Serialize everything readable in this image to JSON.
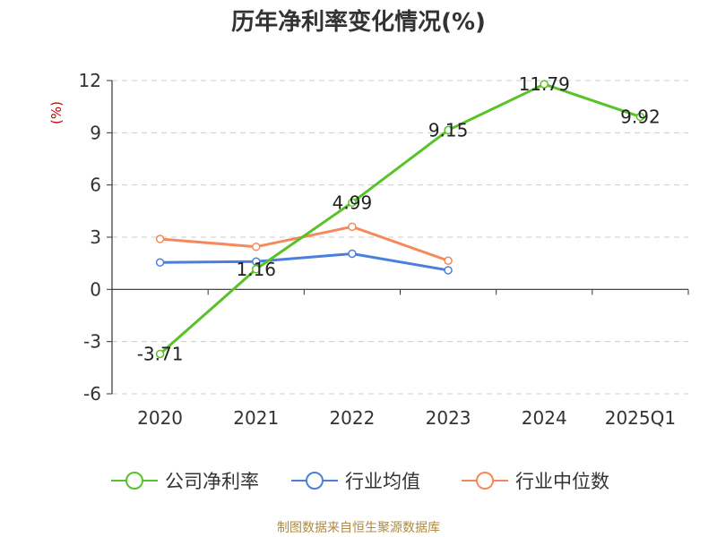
{
  "chart_data": {
    "type": "line",
    "title": "历年净利率变化情况(%)",
    "ylabel": "(%)",
    "categories": [
      "2020",
      "2021",
      "2022",
      "2023",
      "2024",
      "2025Q1"
    ],
    "ylim": [
      -6,
      12
    ],
    "yticks": [
      "12",
      "9",
      "6",
      "3",
      "0",
      "-3",
      "-6"
    ],
    "grid": true,
    "legend_position": "bottom",
    "series": [
      {
        "name": "公司净利率",
        "color": "#5ac229",
        "values": [
          -3.71,
          1.16,
          4.99,
          9.15,
          11.79,
          9.92
        ],
        "labels": [
          "-3.71",
          "1.16",
          "4.99",
          "9.15",
          "11.79",
          "9.92"
        ]
      },
      {
        "name": "行业均值",
        "color": "#4a7fdc",
        "values": [
          1.55,
          1.6,
          2.05,
          1.1,
          null,
          null
        ]
      },
      {
        "name": "行业中位数",
        "color": "#f5895a",
        "values": [
          2.9,
          2.45,
          3.6,
          1.65,
          null,
          null
        ]
      }
    ],
    "source_note": "制图数据来自恒生聚源数据库"
  }
}
